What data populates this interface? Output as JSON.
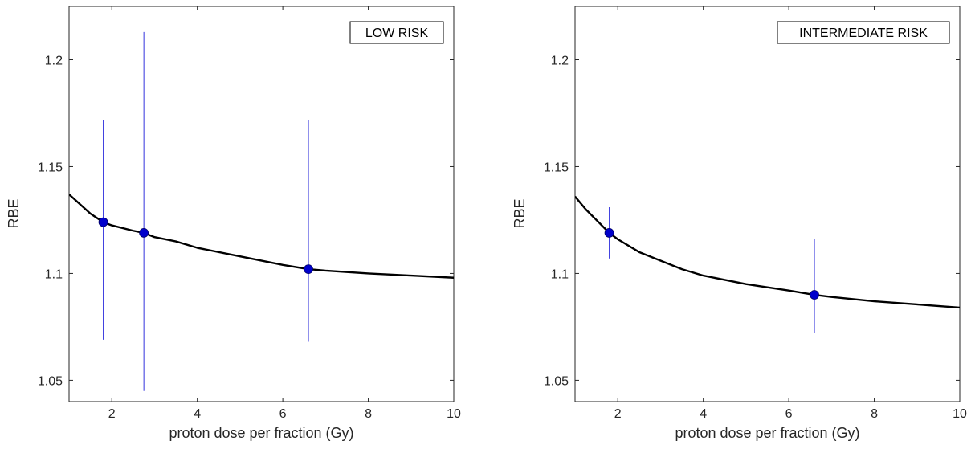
{
  "colors": {
    "curve": "#000000",
    "marker": "#0000cc",
    "errorbar": "#3333dd",
    "axis": "#262626"
  },
  "chart_data": [
    {
      "type": "scatter",
      "label": "LOW RISK",
      "xlabel": "proton dose per fraction (Gy)",
      "ylabel": "RBE",
      "xlim": [
        1,
        10
      ],
      "ylim": [
        1.04,
        1.225
      ],
      "x_ticks": [
        2,
        4,
        6,
        8,
        10
      ],
      "y_ticks": [
        1.05,
        1.1,
        1.15,
        1.2
      ],
      "grid": false,
      "points": [
        {
          "x": 1.8,
          "y": 1.124,
          "err_low": 1.069,
          "err_high": 1.172
        },
        {
          "x": 2.75,
          "y": 1.119,
          "err_low": 1.045,
          "err_high": 1.213
        },
        {
          "x": 6.6,
          "y": 1.102,
          "err_low": 1.068,
          "err_high": 1.172
        }
      ],
      "fit_curve": {
        "x": [
          1.0,
          1.5,
          1.8,
          2.0,
          2.5,
          2.75,
          3.0,
          3.5,
          4.0,
          5.0,
          6.0,
          6.6,
          7.0,
          8.0,
          9.0,
          10.0
        ],
        "y": [
          1.137,
          1.128,
          1.124,
          1.1225,
          1.12,
          1.119,
          1.117,
          1.115,
          1.112,
          1.108,
          1.104,
          1.102,
          1.1013,
          1.1,
          1.099,
          1.098
        ]
      }
    },
    {
      "type": "scatter",
      "label": "INTERMEDIATE RISK",
      "xlabel": "proton dose per fraction (Gy)",
      "ylabel": "RBE",
      "xlim": [
        1,
        10
      ],
      "ylim": [
        1.04,
        1.225
      ],
      "x_ticks": [
        2,
        4,
        6,
        8,
        10
      ],
      "y_ticks": [
        1.05,
        1.1,
        1.15,
        1.2
      ],
      "grid": false,
      "points": [
        {
          "x": 1.8,
          "y": 1.119,
          "err_low": 1.107,
          "err_high": 1.131
        },
        {
          "x": 6.6,
          "y": 1.09,
          "err_low": 1.072,
          "err_high": 1.116
        }
      ],
      "fit_curve": {
        "x": [
          1.0,
          1.25,
          1.5,
          1.8,
          2.0,
          2.5,
          3.0,
          3.5,
          4.0,
          5.0,
          6.0,
          6.6,
          7.0,
          8.0,
          9.0,
          10.0
        ],
        "y": [
          1.136,
          1.13,
          1.125,
          1.119,
          1.116,
          1.11,
          1.106,
          1.102,
          1.099,
          1.095,
          1.092,
          1.09,
          1.089,
          1.087,
          1.0855,
          1.084
        ]
      }
    }
  ]
}
